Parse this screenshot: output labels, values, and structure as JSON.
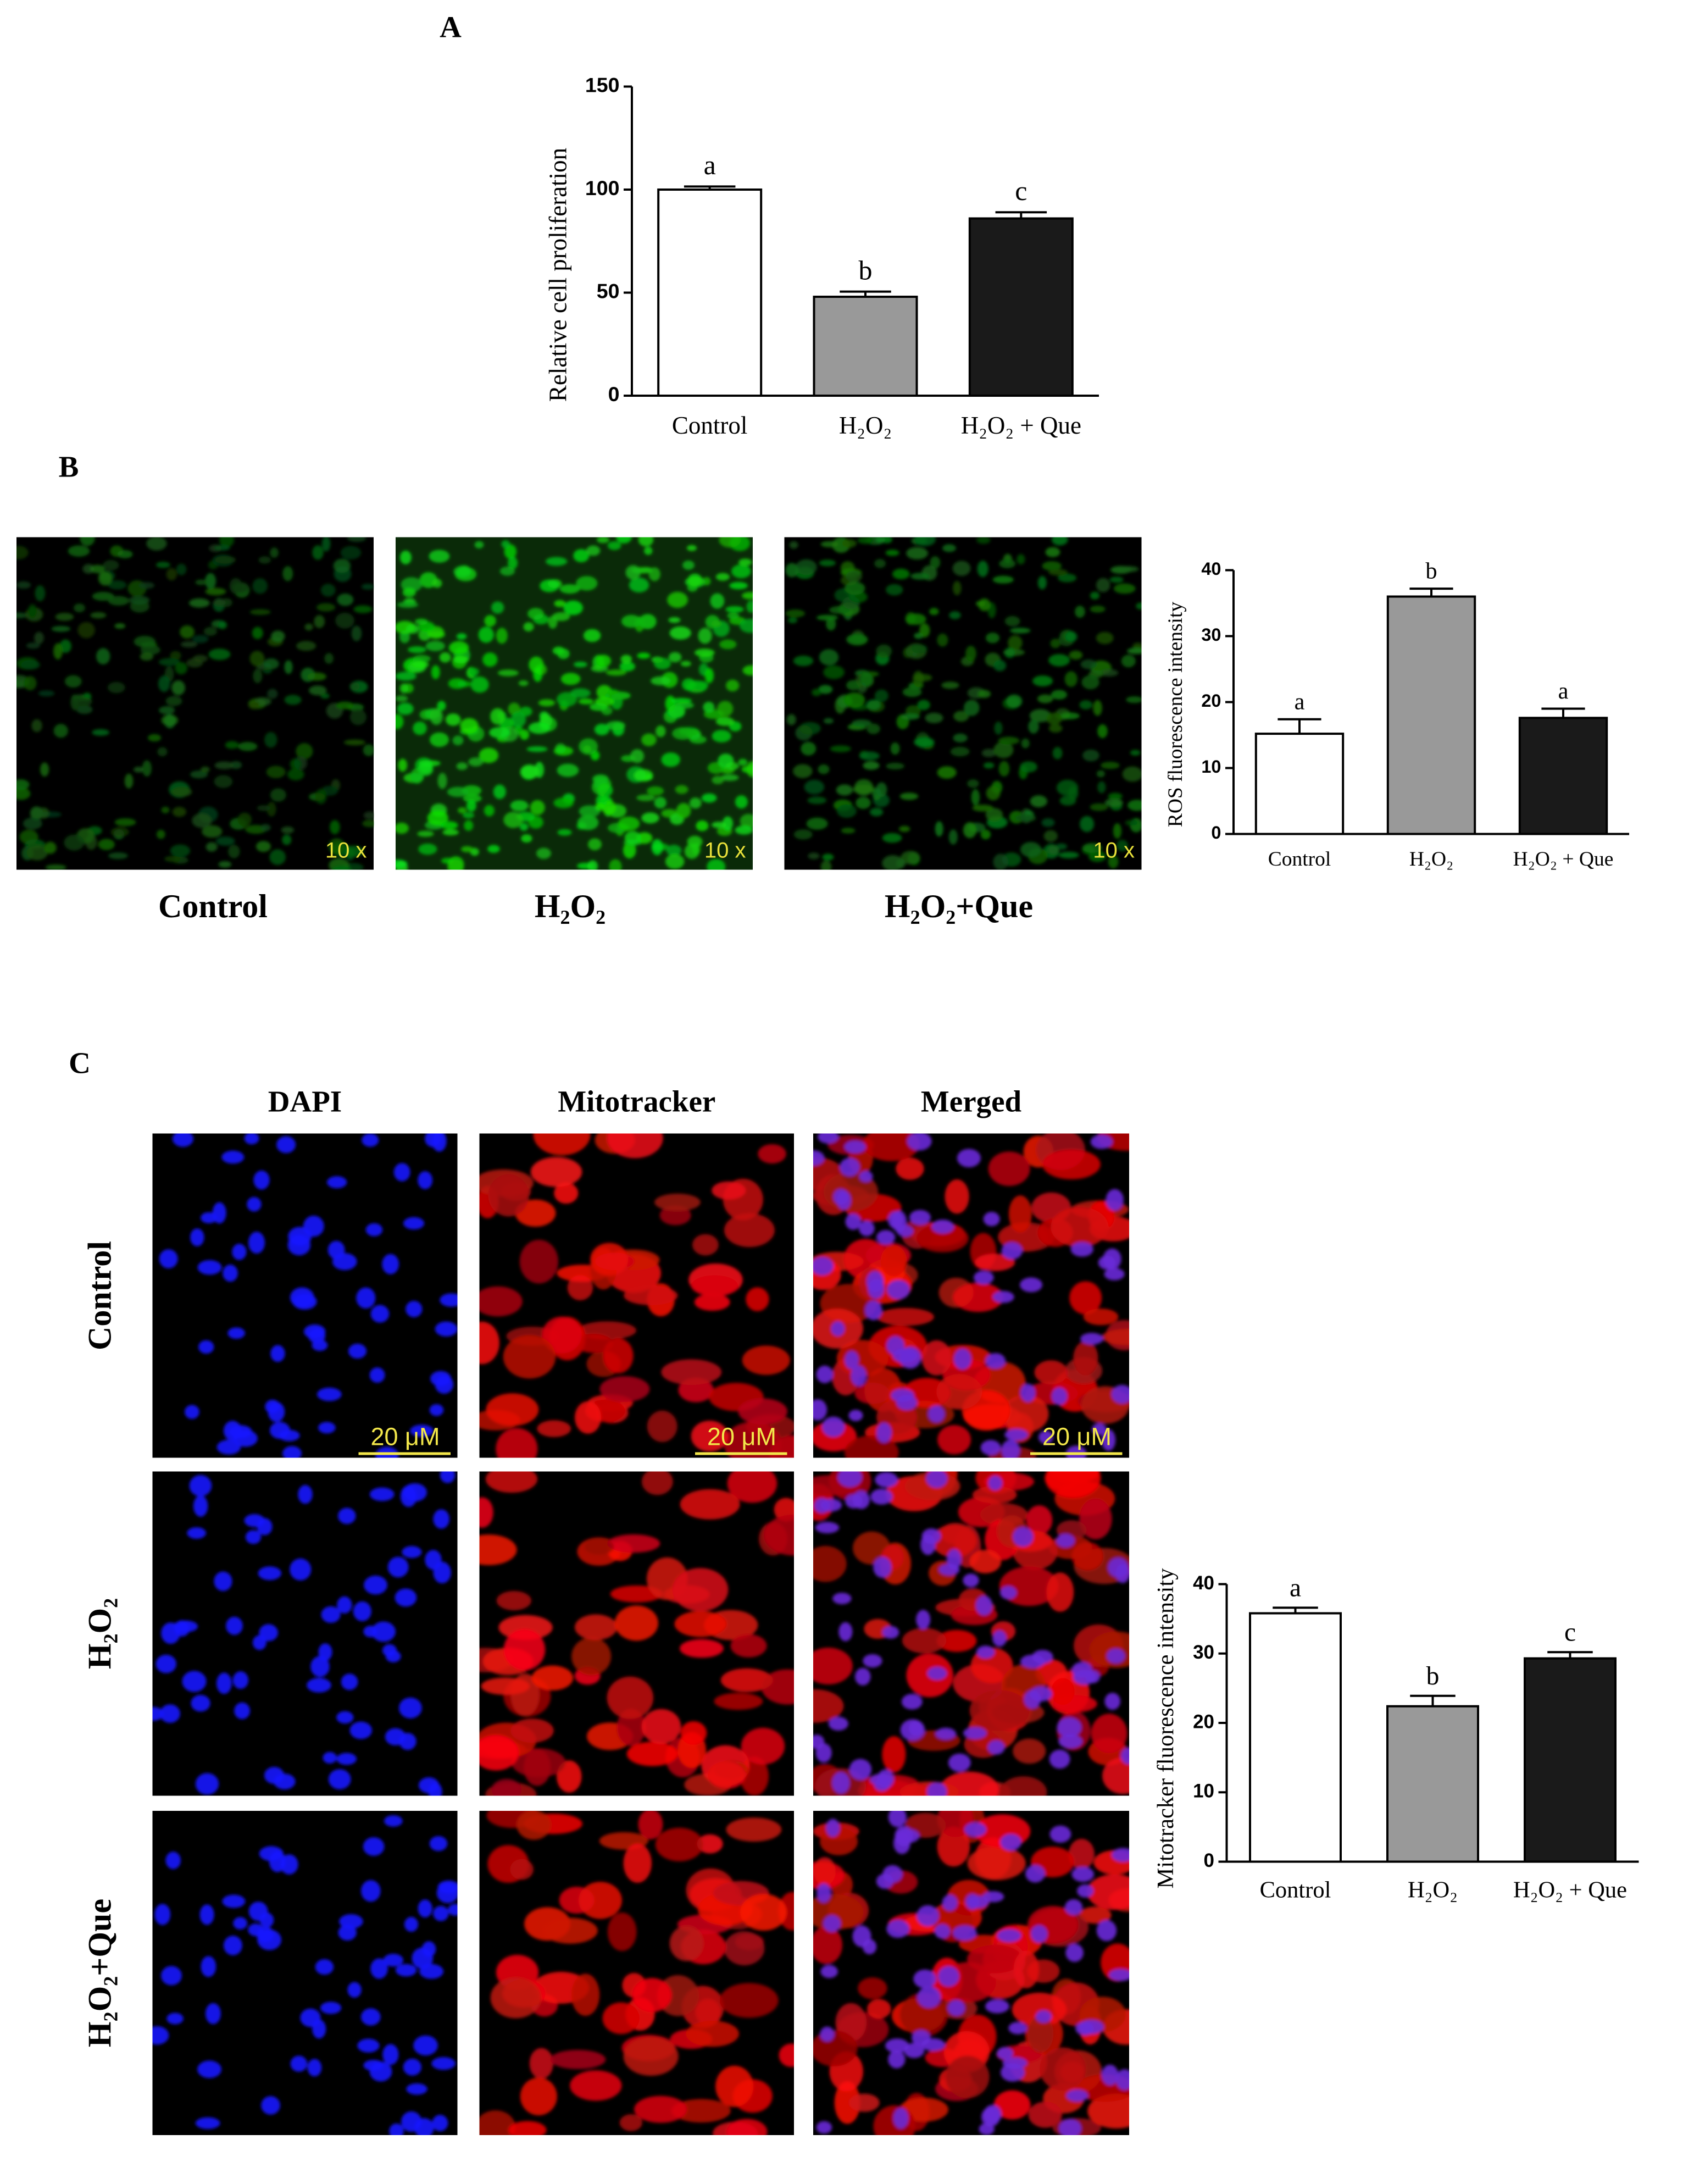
{
  "chart_data": [
    {
      "type": "bar",
      "ylabel": "Relative cell proliferation",
      "categories": [
        "Control",
        "H₂O₂",
        "H₂O₂ + Que"
      ],
      "values": [
        100,
        48,
        86
      ],
      "errors": [
        1.5,
        2.5,
        3
      ],
      "annotations": [
        "a",
        "b",
        "c"
      ],
      "colors": [
        "#ffffff",
        "#999999",
        "#1a1a1a"
      ],
      "ylim": [
        0,
        150
      ],
      "yticks": [
        0,
        50,
        100,
        150
      ]
    },
    {
      "type": "bar",
      "ylabel": "ROS fluorescence intensity",
      "categories": [
        "Control",
        "H₂O₂",
        "H₂O₂ + Que"
      ],
      "values": [
        15.2,
        36,
        17.6
      ],
      "errors": [
        2.2,
        1.2,
        1.4
      ],
      "annotations": [
        "a",
        "b",
        "a"
      ],
      "colors": [
        "#ffffff",
        "#999999",
        "#1a1a1a"
      ],
      "ylim": [
        0,
        40
      ],
      "yticks": [
        0,
        10,
        20,
        30,
        40
      ]
    },
    {
      "type": "bar",
      "ylabel": "Mitotracker fluorescence intensity",
      "categories": [
        "Control",
        "H₂O₂",
        "H₂O₂ + Que"
      ],
      "values": [
        35.8,
        22.4,
        29.3
      ],
      "errors": [
        0.8,
        1.5,
        0.9
      ],
      "annotations": [
        "a",
        "b",
        "c"
      ],
      "colors": [
        "#ffffff",
        "#999999",
        "#1a1a1a"
      ],
      "ylim": [
        0,
        40
      ],
      "yticks": [
        0,
        10,
        20,
        30,
        40
      ]
    }
  ],
  "panel_labels": [
    "A",
    "B",
    "C"
  ],
  "ros_images": {
    "labels": [
      "Control",
      "H₂O₂",
      "H₂O₂+Que"
    ],
    "magnification": "10 x"
  },
  "mito_images": {
    "columns": [
      "DAPI",
      "Mitotracker",
      "Merged"
    ],
    "rows": [
      "Control",
      "H₂O₂",
      "H₂O₂+Que"
    ],
    "scale_bar": "20 μM"
  }
}
